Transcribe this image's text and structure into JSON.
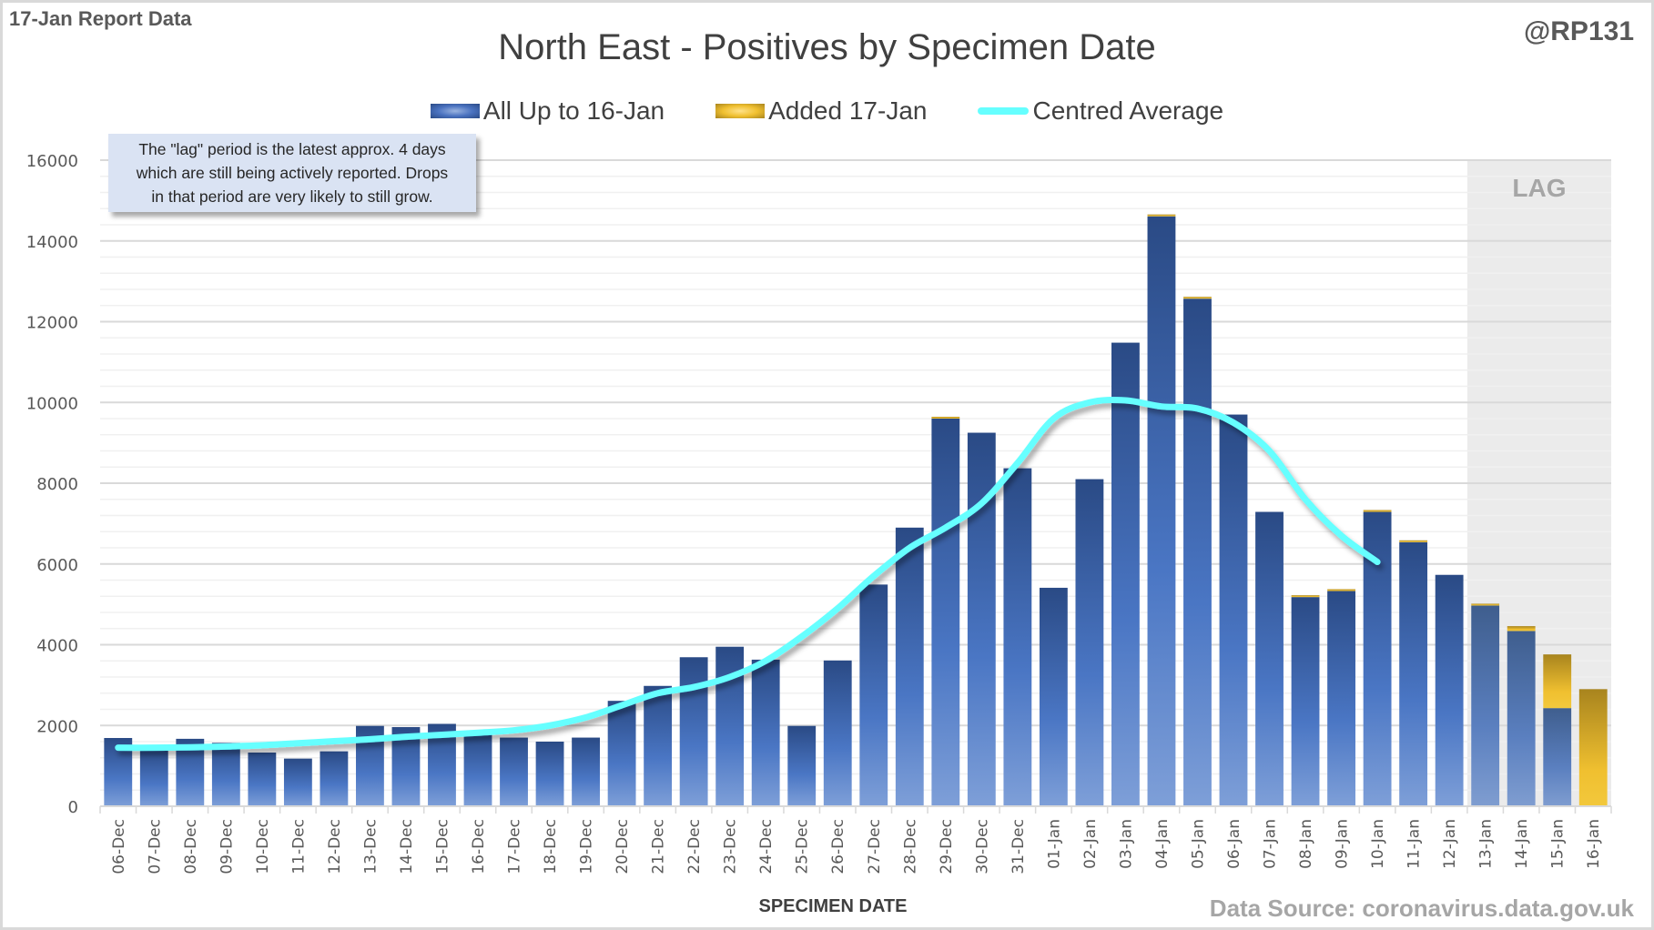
{
  "header": {
    "report_label": "17-Jan Report Data",
    "handle": "@RP131",
    "title": "North East - Positives by Specimen Date"
  },
  "legend": {
    "items": [
      {
        "label": "All Up to 16-Jan",
        "icon": "blue-gradient-swatch"
      },
      {
        "label": "Added 17-Jan",
        "icon": "gold-gradient-swatch"
      },
      {
        "label": "Centred Average",
        "icon": "cyan-line-swatch"
      }
    ]
  },
  "annotation": {
    "lines": [
      "The \"lag\" period is the latest approx. 4 days",
      "which are still being actively reported.  Drops",
      "in that period are very likely to still grow."
    ]
  },
  "lag_label": "LAG",
  "footer": {
    "xlabel": "SPECIMEN DATE",
    "source": "Data Source: coronavirus.data.gov.uk"
  },
  "colors": {
    "base_series": "#3a62a8",
    "added_series": "#f0c030",
    "average_line": "#66ffff",
    "lag_shade": "#ebebeb"
  },
  "chart_data": {
    "type": "bar",
    "stacked": true,
    "title": "North East - Positives by Specimen Date",
    "xlabel": "SPECIMEN DATE",
    "ylabel": "",
    "ylim": [
      0,
      16000
    ],
    "yticks": [
      0,
      2000,
      4000,
      6000,
      8000,
      10000,
      12000,
      14000,
      16000
    ],
    "grid": true,
    "legend_position": "top-center",
    "lag_period": [
      "13-Jan",
      "16-Jan"
    ],
    "categories": [
      "06-Dec",
      "07-Dec",
      "08-Dec",
      "09-Dec",
      "10-Dec",
      "11-Dec",
      "12-Dec",
      "13-Dec",
      "14-Dec",
      "15-Dec",
      "16-Dec",
      "17-Dec",
      "18-Dec",
      "19-Dec",
      "20-Dec",
      "21-Dec",
      "22-Dec",
      "23-Dec",
      "24-Dec",
      "25-Dec",
      "26-Dec",
      "27-Dec",
      "28-Dec",
      "29-Dec",
      "30-Dec",
      "31-Dec",
      "01-Jan",
      "02-Jan",
      "03-Jan",
      "04-Jan",
      "05-Jan",
      "06-Jan",
      "07-Jan",
      "08-Jan",
      "09-Jan",
      "10-Jan",
      "11-Jan",
      "12-Jan",
      "13-Jan",
      "14-Jan",
      "15-Jan",
      "16-Jan"
    ],
    "series": [
      {
        "name": "All Up to 16-Jan",
        "kind": "bar",
        "values": [
          1690,
          1390,
          1670,
          1570,
          1330,
          1180,
          1360,
          1990,
          1960,
          2040,
          1800,
          1700,
          1600,
          1700,
          2610,
          2980,
          3690,
          3950,
          3630,
          1990,
          3610,
          5490,
          6900,
          9600,
          9250,
          8370,
          5410,
          8100,
          11480,
          14610,
          12570,
          9700,
          7290,
          5180,
          5330,
          7290,
          6540,
          5730,
          4970,
          4340,
          2430,
          0
        ]
      },
      {
        "name": "Added 17-Jan",
        "kind": "bar",
        "values": [
          0,
          0,
          0,
          0,
          0,
          0,
          0,
          0,
          0,
          0,
          0,
          0,
          0,
          0,
          0,
          0,
          0,
          0,
          0,
          0,
          0,
          0,
          0,
          30,
          0,
          0,
          0,
          0,
          0,
          40,
          40,
          0,
          0,
          30,
          40,
          40,
          30,
          0,
          30,
          120,
          1330,
          2900
        ]
      },
      {
        "name": "Centred Average",
        "kind": "line",
        "values": [
          1450,
          1450,
          1460,
          1480,
          1510,
          1560,
          1610,
          1660,
          1720,
          1770,
          1820,
          1880,
          2000,
          2200,
          2500,
          2800,
          2950,
          3200,
          3600,
          4200,
          4900,
          5700,
          6400,
          6900,
          7500,
          8500,
          9600,
          10000,
          10050,
          9900,
          9850,
          9500,
          8800,
          7600,
          6700,
          6050,
          null,
          null,
          null,
          null,
          null,
          null
        ]
      }
    ]
  }
}
